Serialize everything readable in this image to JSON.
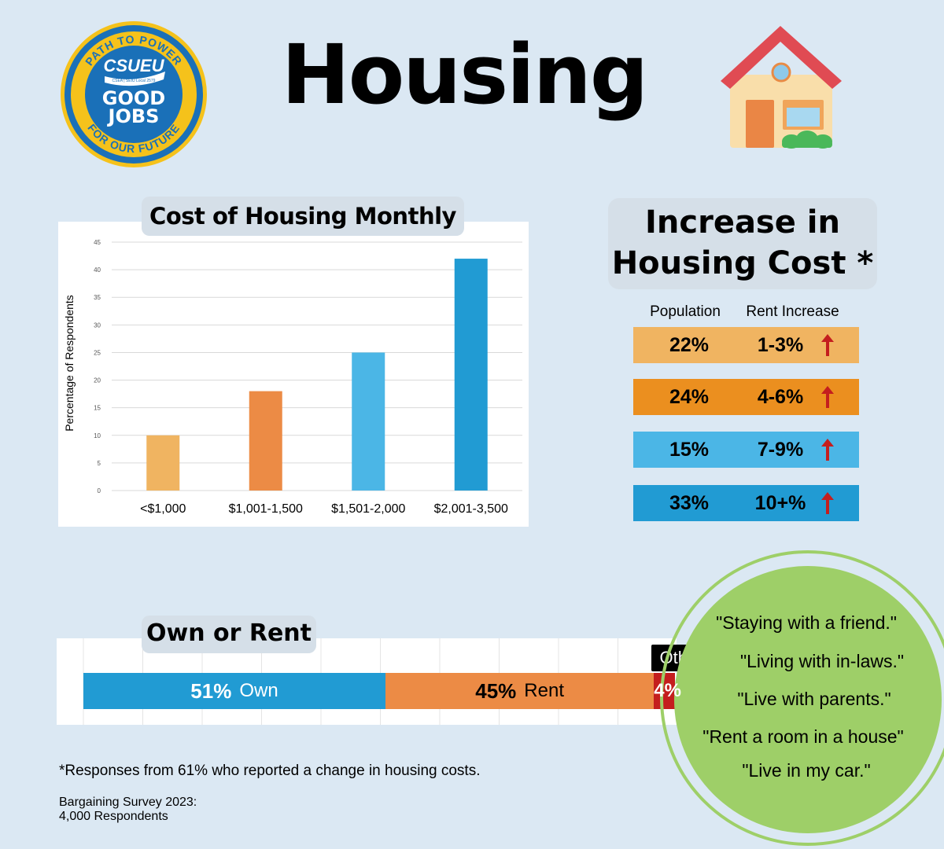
{
  "header": {
    "title": "Housing",
    "logo": {
      "top_arc": "PATH TO POWER",
      "bottom_arc": "FOR OUR FUTURE",
      "name": "CSUEU",
      "subline": "CSEA | SEIU Local 2579",
      "line1": "GOOD",
      "line2": "JOBS"
    },
    "icon": "house-icon"
  },
  "chart_data": {
    "type": "bar",
    "title": "Cost of Housing Monthly",
    "categories": [
      "<$1,000",
      "$1,001-1,500",
      "$1,501-2,000",
      "$2,001-3,500"
    ],
    "values": [
      10,
      18,
      25,
      42
    ],
    "colors": [
      "#f0b461",
      "#ec8b45",
      "#4bb6e6",
      "#219bd3"
    ],
    "ylabel": "Percentage of Respondents",
    "xlabel": "",
    "ylim": [
      0,
      45
    ],
    "yticks": [
      0,
      5,
      10,
      15,
      20,
      25,
      30,
      35,
      40,
      45
    ],
    "grid": true
  },
  "increase": {
    "title_line1": "Increase in",
    "title_line2": "Housing Cost *",
    "col_population": "Population",
    "col_rent": "Rent Increase",
    "rows": [
      {
        "population": "22%",
        "range": "1-3%",
        "color": "#f0b461"
      },
      {
        "population": "24%",
        "range": "4-6%",
        "color": "#eb8f1f"
      },
      {
        "population": "15%",
        "range": "7-9%",
        "color": "#4bb6e6"
      },
      {
        "population": "33%",
        "range": "10+%",
        "color": "#219bd3"
      }
    ],
    "arrow_color": "#c41e1e"
  },
  "own_rent": {
    "title": "Own or Rent",
    "own_pct": "51%",
    "own_label": "Own",
    "own_value": 51,
    "own_color": "#219bd3",
    "rent_pct": "45%",
    "rent_label": "Rent",
    "rent_value": 45,
    "rent_color": "#ec8b45",
    "other_pct": "4%",
    "other_label": "Other",
    "other_value": 4,
    "other_color": "#c41e1e"
  },
  "quotes": [
    "\"Staying with a friend.\"",
    "\"Living with in-laws.\"",
    "\"Live with parents.\"",
    "\"Rent a room in a house\"",
    "\"Live in my car.\""
  ],
  "footer": {
    "footnote": "*Responses from 61% who reported a change in housing costs.",
    "source_line1": "Bargaining Survey 2023:",
    "source_line2": "4,000 Respondents"
  }
}
